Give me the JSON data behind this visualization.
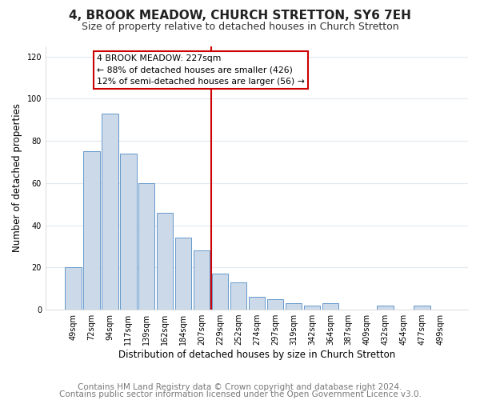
{
  "title": "4, BROOK MEADOW, CHURCH STRETTON, SY6 7EH",
  "subtitle": "Size of property relative to detached houses in Church Stretton",
  "xlabel": "Distribution of detached houses by size in Church Stretton",
  "ylabel": "Number of detached properties",
  "bar_color": "#ccd9e8",
  "bar_edge_color": "#6699cc",
  "bin_labels": [
    "49sqm",
    "72sqm",
    "94sqm",
    "117sqm",
    "139sqm",
    "162sqm",
    "184sqm",
    "207sqm",
    "229sqm",
    "252sqm",
    "274sqm",
    "297sqm",
    "319sqm",
    "342sqm",
    "364sqm",
    "387sqm",
    "409sqm",
    "432sqm",
    "454sqm",
    "477sqm",
    "499sqm"
  ],
  "bar_heights": [
    20,
    75,
    93,
    74,
    60,
    46,
    34,
    28,
    17,
    13,
    6,
    5,
    3,
    2,
    3,
    0,
    0,
    2,
    0,
    2,
    0
  ],
  "vline_color": "#cc0000",
  "annotation_title": "4 BROOK MEADOW: 227sqm",
  "annotation_line1": "← 88% of detached houses are smaller (426)",
  "annotation_line2": "12% of semi-detached houses are larger (56) →",
  "annotation_box_color": "#ffffff",
  "annotation_box_edge": "#cc0000",
  "ylim": [
    0,
    125
  ],
  "yticks": [
    0,
    20,
    40,
    60,
    80,
    100,
    120
  ],
  "footer_line1": "Contains HM Land Registry data © Crown copyright and database right 2024.",
  "footer_line2": "Contains public sector information licensed under the Open Government Licence v3.0.",
  "background_color": "#ffffff",
  "plot_bg_color": "#ffffff",
  "grid_color": "#e0e8f0",
  "title_fontsize": 11,
  "subtitle_fontsize": 9,
  "axis_label_fontsize": 8.5,
  "tick_fontsize": 7,
  "footer_fontsize": 7.5
}
